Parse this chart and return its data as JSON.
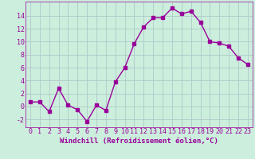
{
  "x": [
    0,
    1,
    2,
    3,
    4,
    5,
    6,
    7,
    8,
    9,
    10,
    11,
    12,
    13,
    14,
    15,
    16,
    17,
    18,
    19,
    20,
    21,
    22,
    23
  ],
  "y": [
    0.7,
    0.7,
    -0.8,
    2.8,
    0.2,
    -0.5,
    -2.3,
    0.2,
    -0.6,
    3.8,
    6.0,
    9.7,
    12.3,
    13.7,
    13.7,
    15.2,
    14.3,
    14.7,
    13.0,
    10.0,
    9.8,
    9.3,
    7.5,
    6.5
  ],
  "line_color": "#990099",
  "marker": "s",
  "markersize": 2.5,
  "linewidth": 1.0,
  "bg_color": "#cceedd",
  "grid_color": "#b0c8c8",
  "xlabel": "Windchill (Refroidissement éolien,°C)",
  "xlabel_fontsize": 6.5,
  "tick_fontsize": 6,
  "xlim": [
    -0.5,
    23.5
  ],
  "ylim": [
    -3.2,
    16.2
  ],
  "yticks": [
    -2,
    0,
    2,
    4,
    6,
    8,
    10,
    12,
    14
  ],
  "xticks": [
    0,
    1,
    2,
    3,
    4,
    5,
    6,
    7,
    8,
    9,
    10,
    11,
    12,
    13,
    14,
    15,
    16,
    17,
    18,
    19,
    20,
    21,
    22,
    23
  ]
}
